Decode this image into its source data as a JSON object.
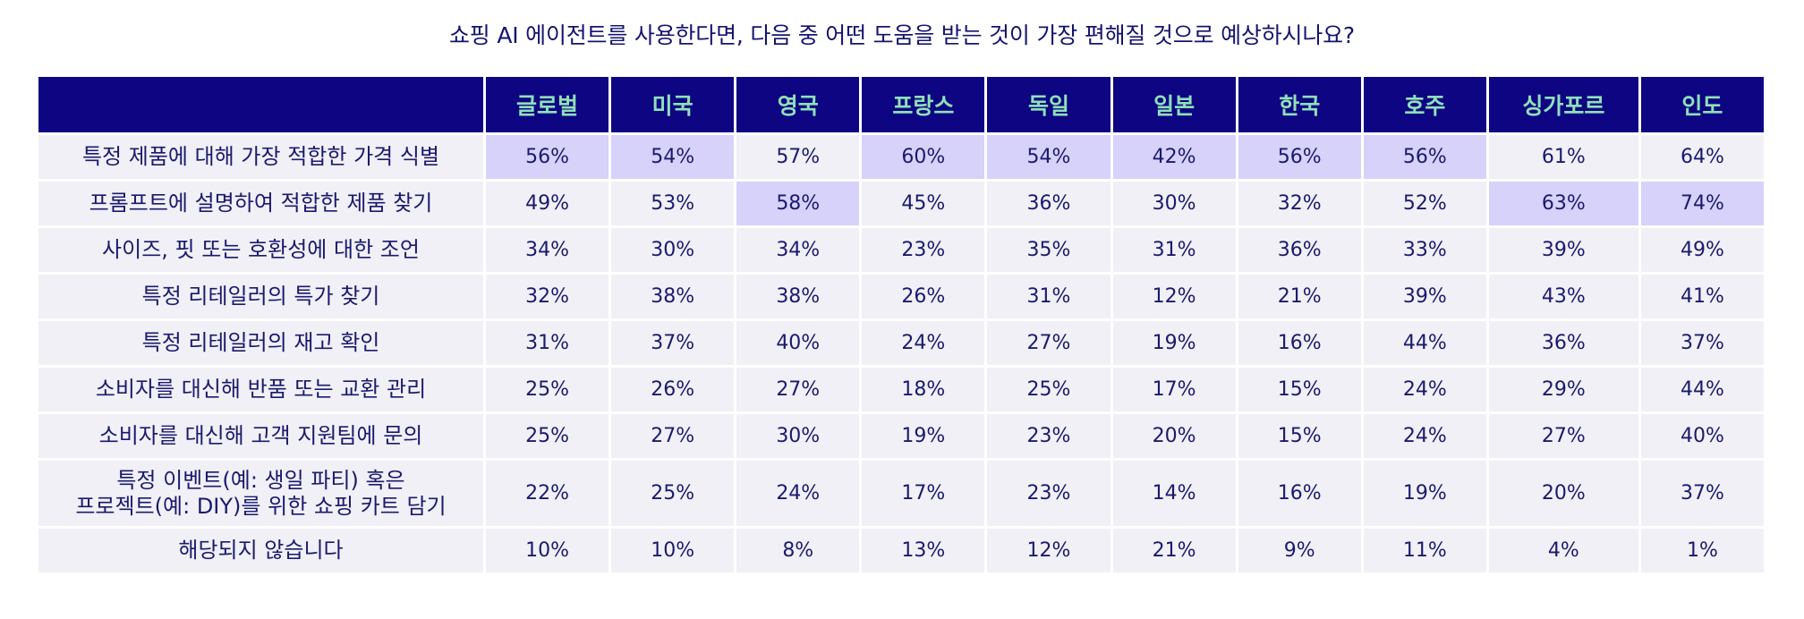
{
  "chart_data": {
    "type": "table",
    "title": "쇼핑 AI 에이전트를 사용한다면, 다음 중 어떤 도움을 받는 것이 가장 편해질 것으로 예상하시나요?",
    "columns": [
      "글로벌",
      "미국",
      "영국",
      "프랑스",
      "독일",
      "일본",
      "한국",
      "호주",
      "싱가포르",
      "인도"
    ],
    "rows": [
      {
        "label": "특정 제품에 대해 가장 적합한 가격 식별",
        "values": [
          "56%",
          "54%",
          "57%",
          "60%",
          "54%",
          "42%",
          "56%",
          "56%",
          "61%",
          "64%"
        ],
        "highlight": [
          true,
          true,
          false,
          true,
          true,
          true,
          true,
          true,
          false,
          false
        ]
      },
      {
        "label": "프롬프트에 설명하여 적합한 제품 찾기",
        "values": [
          "49%",
          "53%",
          "58%",
          "45%",
          "36%",
          "30%",
          "32%",
          "52%",
          "63%",
          "74%"
        ],
        "highlight": [
          false,
          false,
          true,
          false,
          false,
          false,
          false,
          false,
          true,
          true
        ]
      },
      {
        "label": "사이즈, 핏 또는 호환성에 대한 조언",
        "values": [
          "34%",
          "30%",
          "34%",
          "23%",
          "35%",
          "31%",
          "36%",
          "33%",
          "39%",
          "49%"
        ],
        "highlight": [
          false,
          false,
          false,
          false,
          false,
          false,
          false,
          false,
          false,
          false
        ]
      },
      {
        "label": "특정 리테일러의 특가 찾기",
        "values": [
          "32%",
          "38%",
          "38%",
          "26%",
          "31%",
          "12%",
          "21%",
          "39%",
          "43%",
          "41%"
        ],
        "highlight": [
          false,
          false,
          false,
          false,
          false,
          false,
          false,
          false,
          false,
          false
        ]
      },
      {
        "label": "특정 리테일러의 재고 확인",
        "values": [
          "31%",
          "37%",
          "40%",
          "24%",
          "27%",
          "19%",
          "16%",
          "44%",
          "36%",
          "37%"
        ],
        "highlight": [
          false,
          false,
          false,
          false,
          false,
          false,
          false,
          false,
          false,
          false
        ]
      },
      {
        "label": "소비자를 대신해 반품 또는 교환 관리",
        "values": [
          "25%",
          "26%",
          "27%",
          "18%",
          "25%",
          "17%",
          "15%",
          "24%",
          "29%",
          "44%"
        ],
        "highlight": [
          false,
          false,
          false,
          false,
          false,
          false,
          false,
          false,
          false,
          false
        ]
      },
      {
        "label": "소비자를 대신해 고객 지원팀에 문의",
        "values": [
          "25%",
          "27%",
          "30%",
          "19%",
          "23%",
          "20%",
          "15%",
          "24%",
          "27%",
          "40%"
        ],
        "highlight": [
          false,
          false,
          false,
          false,
          false,
          false,
          false,
          false,
          false,
          false
        ]
      },
      {
        "label": "특정 이벤트(예: 생일 파티) 혹은",
        "label_line2": "프로젝트(예: DIY)를 위한 쇼핑 카트 담기",
        "values": [
          "22%",
          "25%",
          "24%",
          "17%",
          "23%",
          "14%",
          "16%",
          "19%",
          "20%",
          "37%"
        ],
        "highlight": [
          false,
          false,
          false,
          false,
          false,
          false,
          false,
          false,
          false,
          false
        ]
      },
      {
        "label": "해당되지 않습니다",
        "values": [
          "10%",
          "10%",
          "8%",
          "13%",
          "12%",
          "21%",
          "9%",
          "11%",
          "4%",
          "1%"
        ],
        "highlight": [
          false,
          false,
          false,
          false,
          false,
          false,
          false,
          false,
          false,
          false
        ]
      }
    ],
    "colors": {
      "header_bg": "#0e0582",
      "header_text": "#8fe0b9",
      "cell_bg": "#f0f0f6",
      "highlight_bg": "#d6d2fa",
      "text": "#1a1a6e"
    }
  }
}
